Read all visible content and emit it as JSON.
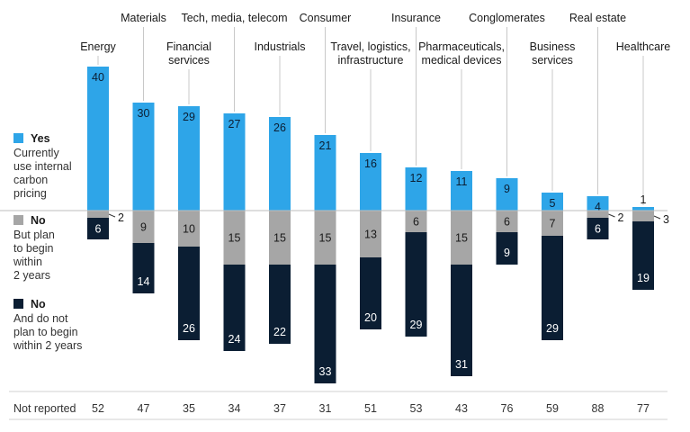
{
  "chart_data": {
    "type": "bar",
    "subtype": "diverging-stacked",
    "unit": "%",
    "categories": [
      [
        "Energy"
      ],
      [
        "Materials"
      ],
      [
        "Financial",
        "services"
      ],
      [
        "Tech, media, telecom"
      ],
      [
        "Industrials"
      ],
      [
        "Consumer"
      ],
      [
        "Travel, logistics,",
        "infrastructure"
      ],
      [
        "Insurance"
      ],
      [
        "Pharmaceuticals,",
        "medical devices"
      ],
      [
        "Conglomerates"
      ],
      [
        "Business",
        "services"
      ],
      [
        "Real estate"
      ],
      [
        "Healthcare"
      ]
    ],
    "series": [
      {
        "name": "Yes",
        "description": [
          "Currently",
          "use internal",
          "carbon",
          "pricing"
        ],
        "color": "#2ea5e8",
        "direction": "up",
        "values": [
          40,
          30,
          29,
          27,
          26,
          21,
          16,
          12,
          11,
          9,
          5,
          4,
          1
        ]
      },
      {
        "name": "No",
        "description": [
          "But plan",
          "to begin",
          "within",
          "2 years"
        ],
        "color": "#a6a6a6",
        "direction": "down",
        "values": [
          2,
          9,
          10,
          15,
          15,
          15,
          13,
          6,
          15,
          6,
          7,
          2,
          3
        ]
      },
      {
        "name": "No",
        "description": [
          "And do not",
          "plan to begin",
          "within 2 years"
        ],
        "color": "#0b1e33",
        "direction": "down",
        "values": [
          6,
          14,
          26,
          24,
          22,
          33,
          20,
          29,
          31,
          9,
          29,
          6,
          19
        ]
      }
    ],
    "not_reported": {
      "label": "Not reported",
      "values": [
        52,
        47,
        35,
        34,
        37,
        31,
        51,
        53,
        43,
        76,
        59,
        88,
        77
      ]
    },
    "legend": "left",
    "grid": false
  }
}
